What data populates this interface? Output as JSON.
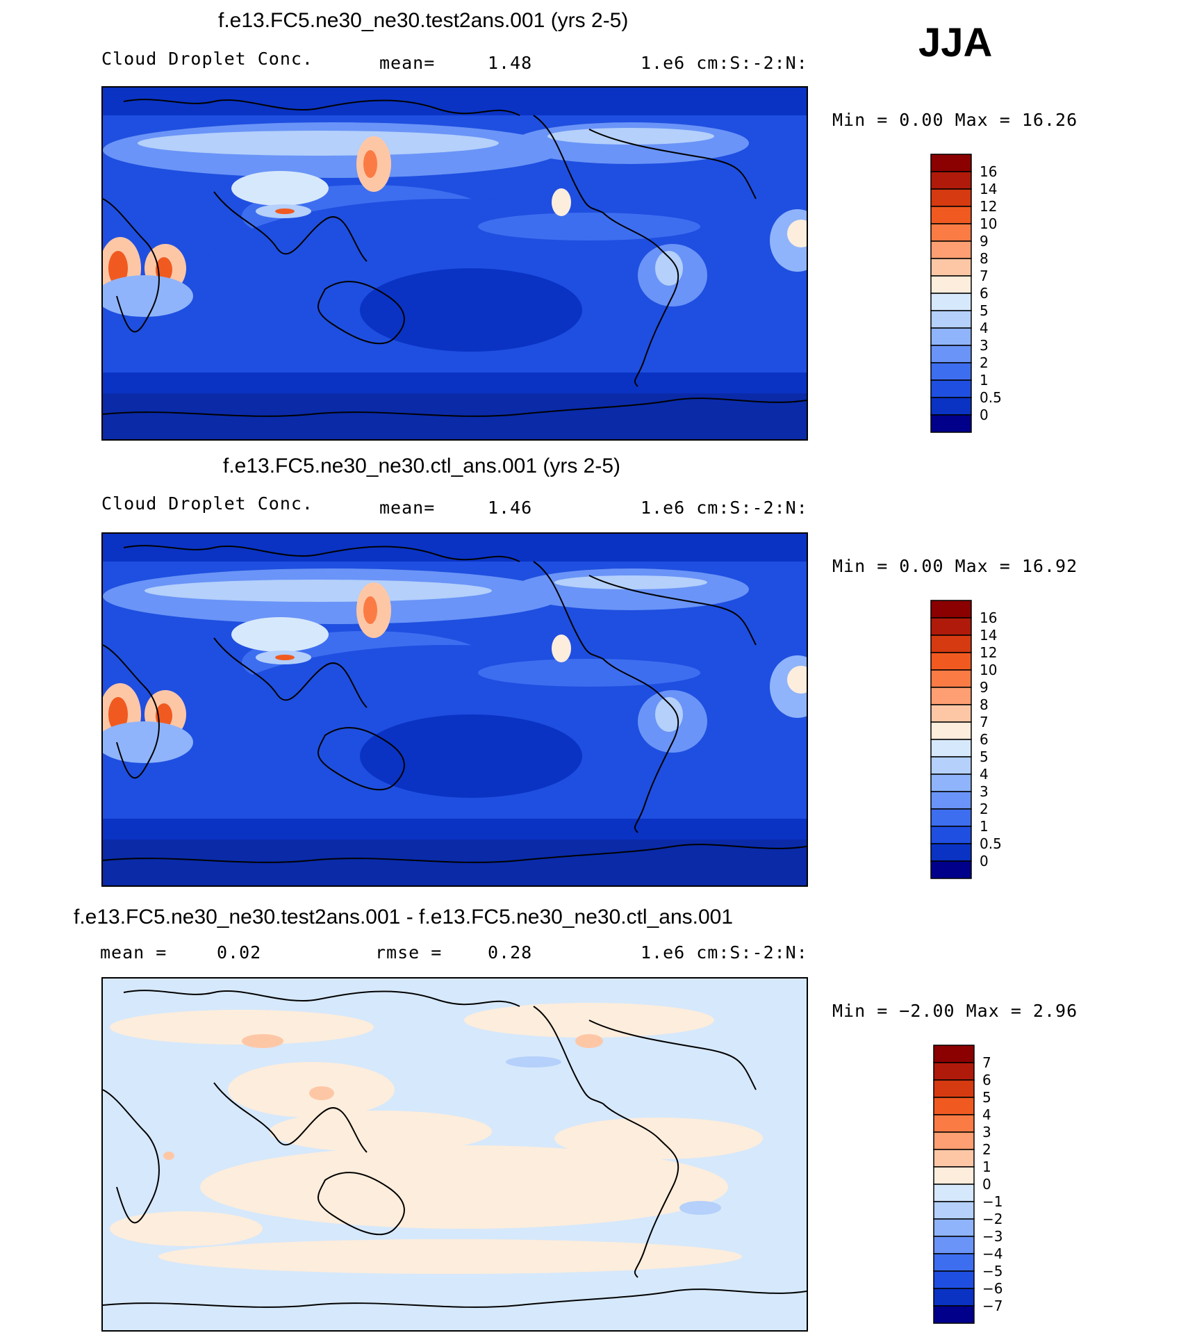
{
  "season": "JJA",
  "panels": [
    {
      "title": "f.e13.FC5.ne30_ne30.test2ans.001 (yrs 2-5)",
      "left_label": "Cloud Droplet Conc.",
      "stat_label": "mean=",
      "stat_value": "1.48",
      "units": "1.e6 cm:S:-2:N:",
      "min_max": "Min =    0.00 Max =   16.26",
      "colorbar_labels": [
        "16",
        "14",
        "12",
        "10",
        "9",
        "8",
        "7",
        "6",
        "5",
        "4",
        "3",
        "2",
        "1",
        "0.5",
        "0"
      ]
    },
    {
      "title": "f.e13.FC5.ne30_ne30.ctl_ans.001 (yrs 2-5)",
      "left_label": "Cloud Droplet Conc.",
      "stat_label": "mean=",
      "stat_value": "1.46",
      "units": "1.e6 cm:S:-2:N:",
      "min_max": "Min =    0.00 Max =   16.92",
      "colorbar_labels": [
        "16",
        "14",
        "12",
        "10",
        "9",
        "8",
        "7",
        "6",
        "5",
        "4",
        "3",
        "2",
        "1",
        "0.5",
        "0"
      ]
    },
    {
      "title": "f.e13.FC5.ne30_ne30.test2ans.001 - f.e13.FC5.ne30_ne30.ctl_ans.001",
      "left_label": "mean =",
      "left_value": "0.02",
      "stat_label": "rmse =",
      "stat_value": "0.28",
      "units": "1.e6 cm:S:-2:N:",
      "min_max": "Min =  −2.00 Max =    2.96",
      "colorbar_labels": [
        "7",
        "6",
        "5",
        "4",
        "3",
        "2",
        "1",
        "0",
        "−1",
        "−2",
        "−3",
        "−4",
        "−5",
        "−6",
        "−7"
      ]
    }
  ],
  "colors": {
    "abs_scale": [
      "#8b0000",
      "#b01a0a",
      "#d63a10",
      "#f05a20",
      "#fb7b45",
      "#fd9f72",
      "#fdc7a6",
      "#fdeddc",
      "#d6e8fb",
      "#b4d0fb",
      "#8fb4fb",
      "#6a94f7",
      "#3e6ef0",
      "#1f4fe0",
      "#0a33c4",
      "#00008b"
    ],
    "diff_scale": [
      "#8b0000",
      "#b01a0a",
      "#d63a10",
      "#f05a20",
      "#fb7b45",
      "#fd9f72",
      "#fdc7a6",
      "#fdeddc",
      "#d6e8fb",
      "#b4d0fb",
      "#8fb4fb",
      "#6a94f7",
      "#3e6ef0",
      "#1f4fe0",
      "#0a33c4",
      "#00008b"
    ]
  },
  "chart_data": [
    {
      "type": "heatmap",
      "title": "f.e13.FC5.ne30_ne30.test2ans.001 (yrs 2-5)",
      "variable": "Cloud Droplet Conc.",
      "units": "1.e6 cm:S:-2:N:",
      "mean": 1.48,
      "min": 0.0,
      "max": 16.26,
      "levels": [
        0,
        0.5,
        1,
        2,
        3,
        4,
        5,
        6,
        7,
        8,
        9,
        10,
        12,
        14,
        16
      ]
    },
    {
      "type": "heatmap",
      "title": "f.e13.FC5.ne30_ne30.ctl_ans.001 (yrs 2-5)",
      "variable": "Cloud Droplet Conc.",
      "units": "1.e6 cm:S:-2:N:",
      "mean": 1.46,
      "min": 0.0,
      "max": 16.92,
      "levels": [
        0,
        0.5,
        1,
        2,
        3,
        4,
        5,
        6,
        7,
        8,
        9,
        10,
        12,
        14,
        16
      ]
    },
    {
      "type": "heatmap",
      "title": "f.e13.FC5.ne30_ne30.test2ans.001 - f.e13.FC5.ne30_ne30.ctl_ans.001",
      "units": "1.e6 cm:S:-2:N:",
      "mean": 0.02,
      "rmse": 0.28,
      "min": -2.0,
      "max": 2.96,
      "levels": [
        -7,
        -6,
        -5,
        -4,
        -3,
        -2,
        -1,
        0,
        1,
        2,
        3,
        4,
        5,
        6,
        7
      ]
    }
  ]
}
